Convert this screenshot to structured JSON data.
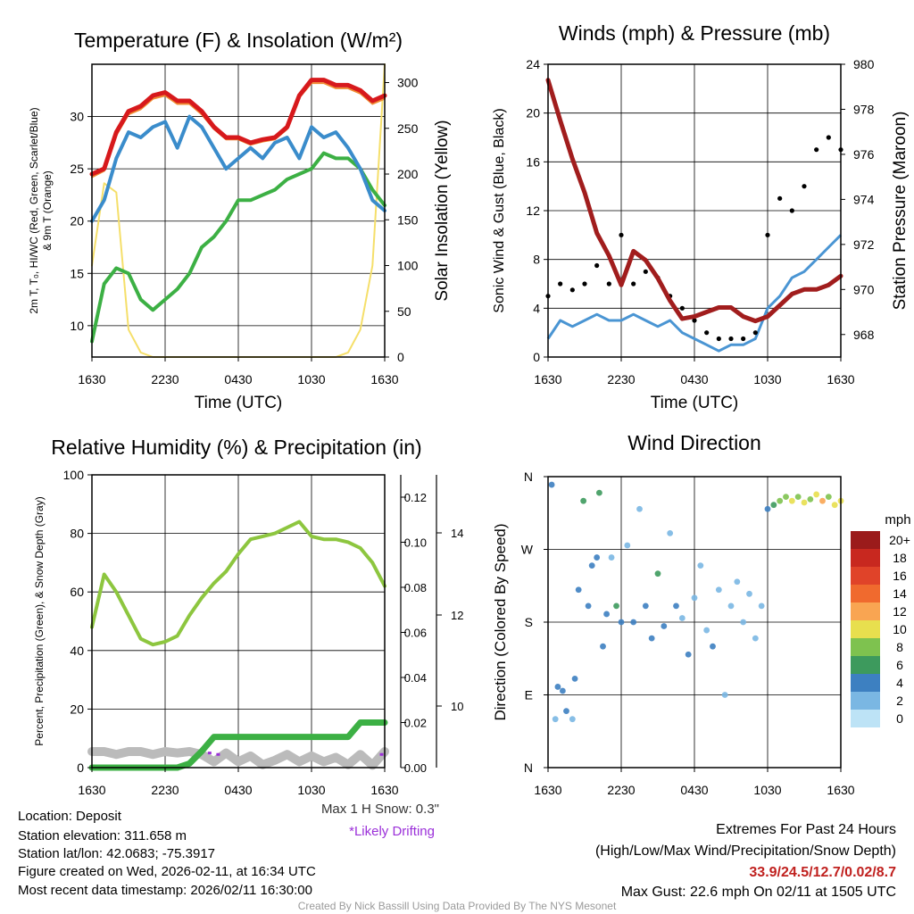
{
  "colors": {
    "temp": "#d7191c",
    "dewpoint": "#3cb044",
    "hiwc": "#3a8ccb",
    "t9m": "#f08c32",
    "insolation": "#f5df6a",
    "wind": "#4a95d3",
    "gust": "#000000",
    "pressure": "#a11d1d",
    "rh": "#8dc63f",
    "precip": "#3cb044",
    "snow": "#bbbbbb",
    "drift": "#9b30d9",
    "grid": "#000000",
    "extremes": "#c0211f",
    "credit": "#9a9a9a"
  },
  "time_ticks": [
    "1630",
    "2230",
    "0430",
    "1030",
    "1630"
  ],
  "chart_data": [
    {
      "id": "temperature",
      "type": "line",
      "title": "Temperature (F) & Insolation (W/m²)",
      "xlabel": "Time (UTC)",
      "ylabel_lines": [
        "2m T, T₀, HI/WC (Red, Green, Scarlet/Blue)",
        "& 9m T (Orange)"
      ],
      "y2label": "Solar Insolation (Yellow)",
      "ylim": [
        7,
        35
      ],
      "yticks": [
        10,
        15,
        20,
        25,
        30
      ],
      "y2lim": [
        0,
        320
      ],
      "y2ticks": [
        0,
        50,
        100,
        150,
        200,
        250,
        300
      ],
      "x": [
        0,
        1,
        2,
        3,
        4,
        5,
        6,
        7,
        8,
        9,
        10,
        11,
        12,
        13,
        14,
        15,
        16,
        17,
        18,
        19,
        20,
        21,
        22,
        23,
        24
      ],
      "series": [
        {
          "name": "2m T",
          "color_key": "temp",
          "width": 5,
          "values": [
            24.5,
            25,
            28.5,
            30.5,
            31,
            32,
            32.3,
            31.5,
            31.5,
            30.5,
            29,
            28,
            28,
            27.5,
            27.8,
            28,
            29,
            32,
            33.5,
            33.5,
            33,
            33,
            32.5,
            31.5,
            32
          ]
        },
        {
          "name": "9m T",
          "color_key": "t9m",
          "width": 2,
          "values": [
            24.2,
            24.8,
            28.2,
            30.2,
            30.7,
            31.7,
            32,
            31.2,
            31.2,
            30.2,
            28.8,
            27.8,
            27.8,
            27.3,
            27.6,
            27.8,
            28.8,
            31.8,
            33.2,
            33.2,
            32.7,
            32.7,
            32.2,
            31.2,
            31.7
          ]
        },
        {
          "name": "HI/WC",
          "color_key": "hiwc",
          "width": 4,
          "values": [
            20,
            22,
            26,
            28.5,
            28,
            29,
            29.5,
            27,
            30,
            29,
            27,
            25,
            26,
            27,
            26,
            27.5,
            28,
            26,
            29,
            28,
            28.5,
            27,
            25,
            22,
            21
          ]
        },
        {
          "name": "Dewpoint",
          "color_key": "dewpoint",
          "width": 4,
          "values": [
            8.5,
            14,
            15.5,
            15,
            12.5,
            11.5,
            12.5,
            13.5,
            15,
            17.5,
            18.5,
            20,
            22,
            22,
            22.5,
            23,
            24,
            24.5,
            25,
            26.5,
            26,
            26,
            25,
            23,
            21.5
          ]
        },
        {
          "name": "Insolation",
          "color_key": "insolation",
          "axis": "y2",
          "width": 2,
          "values": [
            100,
            190,
            180,
            30,
            5,
            0,
            0,
            0,
            0,
            0,
            0,
            0,
            0,
            0,
            0,
            0,
            0,
            0,
            0,
            0,
            0,
            5,
            30,
            100,
            320
          ]
        }
      ]
    },
    {
      "id": "winds",
      "type": "line",
      "title": "Winds (mph) & Pressure (mb)",
      "xlabel": "Time (UTC)",
      "ylabel": "Sonic Wind & Gust (Blue, Black)",
      "y2label": "Station Pressure (Maroon)",
      "ylim": [
        0,
        24
      ],
      "yticks": [
        0,
        4,
        8,
        12,
        16,
        20,
        24
      ],
      "y2lim": [
        967,
        980
      ],
      "y2ticks": [
        968,
        970,
        972,
        974,
        976,
        978,
        980
      ],
      "x": [
        0,
        1,
        2,
        3,
        4,
        5,
        6,
        7,
        8,
        9,
        10,
        11,
        12,
        13,
        14,
        15,
        16,
        17,
        18,
        19,
        20,
        21,
        22,
        23,
        24
      ],
      "series": [
        {
          "name": "Sonic Wind",
          "color_key": "wind",
          "width": 3,
          "values": [
            1.5,
            3,
            2.5,
            3,
            3.5,
            3,
            3,
            3.5,
            3,
            2.5,
            3,
            2,
            1.5,
            1,
            0.5,
            1,
            1,
            1.5,
            4,
            5,
            6.5,
            7,
            8,
            9,
            10
          ]
        },
        {
          "name": "Gust",
          "color_key": "gust",
          "type": "scatter",
          "values": [
            5,
            6,
            5.5,
            6,
            7.5,
            6,
            10,
            6,
            7,
            6.5,
            5,
            4,
            3,
            2,
            1.5,
            1.5,
            1.5,
            2,
            10,
            13,
            12,
            14,
            17,
            18,
            17
          ]
        },
        {
          "name": "Pressure",
          "color_key": "pressure",
          "axis": "y2",
          "width": 5,
          "values": [
            979.3,
            977.5,
            975.8,
            974.3,
            972.5,
            971.5,
            970.2,
            971.7,
            971.3,
            970.5,
            969.5,
            968.7,
            968.8,
            969,
            969.2,
            969.2,
            968.8,
            968.6,
            968.8,
            969.3,
            969.8,
            970,
            970,
            970.2,
            970.6
          ]
        }
      ]
    },
    {
      "id": "humidity",
      "type": "line",
      "title": "Relative Humidity (%) & Precipitation (in)",
      "ylabel": "Percent, Precipitation (Green), & Snow Depth (Gray)",
      "ylim": [
        0,
        100
      ],
      "yticks": [
        0,
        20,
        40,
        60,
        80,
        100
      ],
      "precip_ticks": [
        "0.00",
        "0.02",
        "0.04",
        "0.06",
        "0.08",
        "0.10",
        "0.12"
      ],
      "snow_ticks": [
        "10",
        "12",
        "14"
      ],
      "x": [
        0,
        1,
        2,
        3,
        4,
        5,
        6,
        7,
        8,
        9,
        10,
        11,
        12,
        13,
        14,
        15,
        16,
        17,
        18,
        19,
        20,
        21,
        22,
        23,
        24
      ],
      "series": [
        {
          "name": "RH",
          "color_key": "rh",
          "width": 4,
          "values": [
            48,
            66,
            60,
            52,
            44,
            42,
            43,
            45,
            52,
            58,
            63,
            67,
            73,
            78,
            79,
            80,
            82,
            84,
            79,
            78,
            78,
            77,
            75,
            70,
            62
          ]
        },
        {
          "name": "Precipitation",
          "color_key": "precip",
          "width": 7,
          "values": [
            0,
            0,
            0,
            0,
            0,
            0,
            0,
            0,
            0.2,
            0.8,
            1.5,
            1.5,
            1.5,
            1.5,
            1.5,
            1.5,
            1.5,
            1.5,
            1.5,
            1.5,
            1.5,
            1.5,
            2.2,
            2.2,
            2.2
          ]
        },
        {
          "name": "Snow Depth",
          "color_key": "snow",
          "width": 10,
          "values": [
            5.5,
            5.5,
            4.5,
            5.5,
            5.5,
            4.5,
            5.5,
            5,
            5.5,
            4.5,
            2,
            5,
            2,
            4,
            1,
            2.5,
            4.5,
            2,
            4,
            2,
            3.5,
            1,
            4.5,
            0.8,
            5.5
          ]
        }
      ],
      "notes": {
        "max_snow": "Max 1 H Snow: 0.3\"",
        "drifting": "*Likely Drifting"
      }
    },
    {
      "id": "wind_direction",
      "type": "scatter",
      "title": "Wind Direction",
      "ylabel": "Direction (Colored By Speed)",
      "ylim": [
        0,
        360
      ],
      "dir_labels": [
        "N",
        "E",
        "S",
        "W",
        "N"
      ],
      "legend_title": "mph",
      "legend": [
        "20+",
        "18",
        "16",
        "14",
        "12",
        "10",
        "8",
        "6",
        "4",
        "2",
        "0"
      ],
      "legend_colors": [
        "#9b1b1b",
        "#c8281f",
        "#e04329",
        "#f06a2e",
        "#f9a552",
        "#e8df4e",
        "#7ec24f",
        "#3d9a5d",
        "#3d80c1",
        "#7ab7e3",
        "#bde3f6"
      ],
      "points": [
        {
          "x": 0.3,
          "dir": 350,
          "s": 3
        },
        {
          "x": 0.6,
          "dir": 60,
          "s": 2
        },
        {
          "x": 0.8,
          "dir": 100,
          "s": 4
        },
        {
          "x": 1.2,
          "dir": 95,
          "s": 3
        },
        {
          "x": 1.5,
          "dir": 70,
          "s": 4
        },
        {
          "x": 2.0,
          "dir": 60,
          "s": 2
        },
        {
          "x": 2.2,
          "dir": 110,
          "s": 3
        },
        {
          "x": 2.5,
          "dir": 220,
          "s": 4
        },
        {
          "x": 2.9,
          "dir": 330,
          "s": 5
        },
        {
          "x": 3.3,
          "dir": 200,
          "s": 4
        },
        {
          "x": 3.6,
          "dir": 250,
          "s": 3
        },
        {
          "x": 4.0,
          "dir": 260,
          "s": 4
        },
        {
          "x": 4.2,
          "dir": 340,
          "s": 5
        },
        {
          "x": 4.5,
          "dir": 150,
          "s": 3
        },
        {
          "x": 4.8,
          "dir": 190,
          "s": 4
        },
        {
          "x": 5.2,
          "dir": 260,
          "s": 2
        },
        {
          "x": 5.6,
          "dir": 200,
          "s": 5
        },
        {
          "x": 6.0,
          "dir": 180,
          "s": 3
        },
        {
          "x": 6.5,
          "dir": 275,
          "s": 2
        },
        {
          "x": 7.0,
          "dir": 180,
          "s": 4
        },
        {
          "x": 7.5,
          "dir": 320,
          "s": 2
        },
        {
          "x": 8.0,
          "dir": 200,
          "s": 3
        },
        {
          "x": 8.5,
          "dir": 160,
          "s": 4
        },
        {
          "x": 9.0,
          "dir": 240,
          "s": 5
        },
        {
          "x": 9.5,
          "dir": 175,
          "s": 3
        },
        {
          "x": 10.0,
          "dir": 290,
          "s": 1
        },
        {
          "x": 10.5,
          "dir": 200,
          "s": 4
        },
        {
          "x": 11.0,
          "dir": 185,
          "s": 2
        },
        {
          "x": 11.5,
          "dir": 140,
          "s": 3
        },
        {
          "x": 12.0,
          "dir": 210,
          "s": 2
        },
        {
          "x": 12.5,
          "dir": 250,
          "s": 1
        },
        {
          "x": 13.0,
          "dir": 170,
          "s": 2
        },
        {
          "x": 13.5,
          "dir": 150,
          "s": 3
        },
        {
          "x": 14.0,
          "dir": 220,
          "s": 1
        },
        {
          "x": 14.5,
          "dir": 90,
          "s": 2
        },
        {
          "x": 15.0,
          "dir": 200,
          "s": 1
        },
        {
          "x": 15.5,
          "dir": 230,
          "s": 2
        },
        {
          "x": 16.0,
          "dir": 180,
          "s": 1
        },
        {
          "x": 16.5,
          "dir": 215,
          "s": 2
        },
        {
          "x": 17.0,
          "dir": 160,
          "s": 1
        },
        {
          "x": 17.5,
          "dir": 200,
          "s": 2
        },
        {
          "x": 18.0,
          "dir": 320,
          "s": 4
        },
        {
          "x": 18.5,
          "dir": 325,
          "s": 6
        },
        {
          "x": 19.0,
          "dir": 330,
          "s": 8
        },
        {
          "x": 19.5,
          "dir": 335,
          "s": 7
        },
        {
          "x": 20.0,
          "dir": 330,
          "s": 9
        },
        {
          "x": 20.5,
          "dir": 335,
          "s": 7
        },
        {
          "x": 21.0,
          "dir": 328,
          "s": 10
        },
        {
          "x": 21.5,
          "dir": 332,
          "s": 8
        },
        {
          "x": 22.0,
          "dir": 338,
          "s": 9
        },
        {
          "x": 22.5,
          "dir": 330,
          "s": 11
        },
        {
          "x": 23.0,
          "dir": 335,
          "s": 8
        },
        {
          "x": 23.5,
          "dir": 325,
          "s": 10
        },
        {
          "x": 24.0,
          "dir": 330,
          "s": 9
        }
      ]
    }
  ],
  "info": {
    "location": "Location: Deposit",
    "elevation": "Station elevation: 311.658 m",
    "latlon": "Station lat/lon: 42.0683; -75.3917",
    "created": "Figure created on Wed, 2026-02-11, at 16:34 UTC",
    "recent": "Most recent data timestamp: 2026/02/11 16:30:00"
  },
  "extremes": {
    "title": "Extremes For Past 24 Hours",
    "subtitle": "(High/Low/Max Wind/Precipitation/Snow Depth)",
    "values": "33.9/24.5/12.7/0.02/8.7",
    "gust": "Max Gust: 22.6 mph On 02/11 at 1505 UTC"
  },
  "credit": "Created By Nick Bassill Using Data Provided By The NYS Mesonet"
}
